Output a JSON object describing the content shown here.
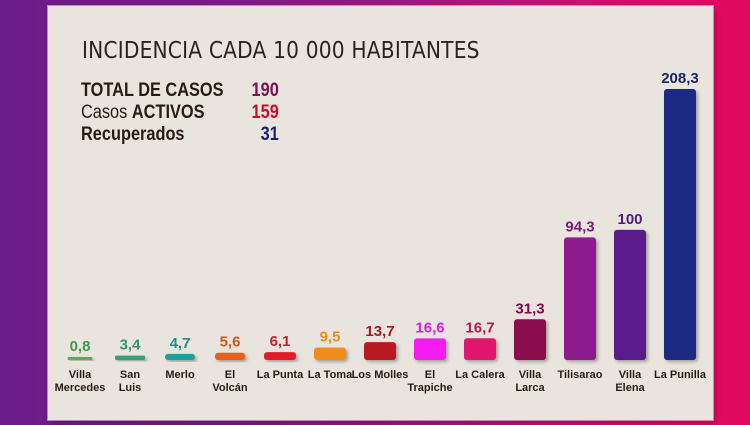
{
  "chart_data": {
    "type": "bar",
    "title": "INCIDENCIA CADA 10 000 HABITANTES",
    "xlabel": "",
    "ylabel": "",
    "ylim": [
      0,
      208.3
    ],
    "grid": false,
    "categories": [
      "Villa Mercedes",
      "San Luis",
      "Merlo",
      "El Volcán",
      "La Punta",
      "La Toma",
      "Los Molles",
      "El Trapiche",
      "La Calera",
      "Villa Larca",
      "Tilisarao",
      "Villa Elena",
      "La Punilla"
    ],
    "category_lines": [
      [
        "Villa",
        "Mercedes"
      ],
      [
        "San",
        "Luis"
      ],
      [
        "Merlo"
      ],
      [
        "El",
        "Volcán"
      ],
      [
        "La Punta"
      ],
      [
        "La Toma"
      ],
      [
        "Los Molles"
      ],
      [
        "El",
        "Trapiche"
      ],
      [
        "La Calera"
      ],
      [
        "Villa",
        "Larca"
      ],
      [
        "Tilisarao"
      ],
      [
        "Villa",
        "Elena"
      ],
      [
        "La Punilla"
      ]
    ],
    "values": [
      0.8,
      3.4,
      4.7,
      5.6,
      6.1,
      9.5,
      13.7,
      16.6,
      16.7,
      31.3,
      94.3,
      100,
      208.3
    ],
    "value_labels": [
      "0,8",
      "3,4",
      "4,7",
      "5,6",
      "6,1",
      "9,5",
      "13,7",
      "16,6",
      "16,7",
      "31,3",
      "94,3",
      "100",
      "208,3"
    ],
    "colors": [
      "#5aaa5a",
      "#2fa57a",
      "#1e9fa0",
      "#e8601c",
      "#e01b2b",
      "#f08c1c",
      "#b81c24",
      "#f21cf0",
      "#e0186e",
      "#8b0a4f",
      "#8e1e8e",
      "#5a1e8a",
      "#1e2a84"
    ],
    "label_colors": [
      "#3f9a4a",
      "#2a9670",
      "#1a8f90",
      "#d9561a",
      "#c81c2a",
      "#e88a1c",
      "#a81a22",
      "#e01ce0",
      "#c0125e",
      "#7a0a48",
      "#7e1a80",
      "#4e1a7e",
      "#1c1f6e"
    ]
  },
  "legend": {
    "total": {
      "label_bold": "TOTAL DE CASOS",
      "value": "190",
      "color": "#7a1050"
    },
    "activos": {
      "label_light": "Casos ",
      "label_bold": "ACTIVOS",
      "value": "159",
      "color": "#c8102e"
    },
    "recuperados": {
      "label_bold": "Recuperados",
      "value": "31",
      "color": "#1c1f6e"
    }
  }
}
